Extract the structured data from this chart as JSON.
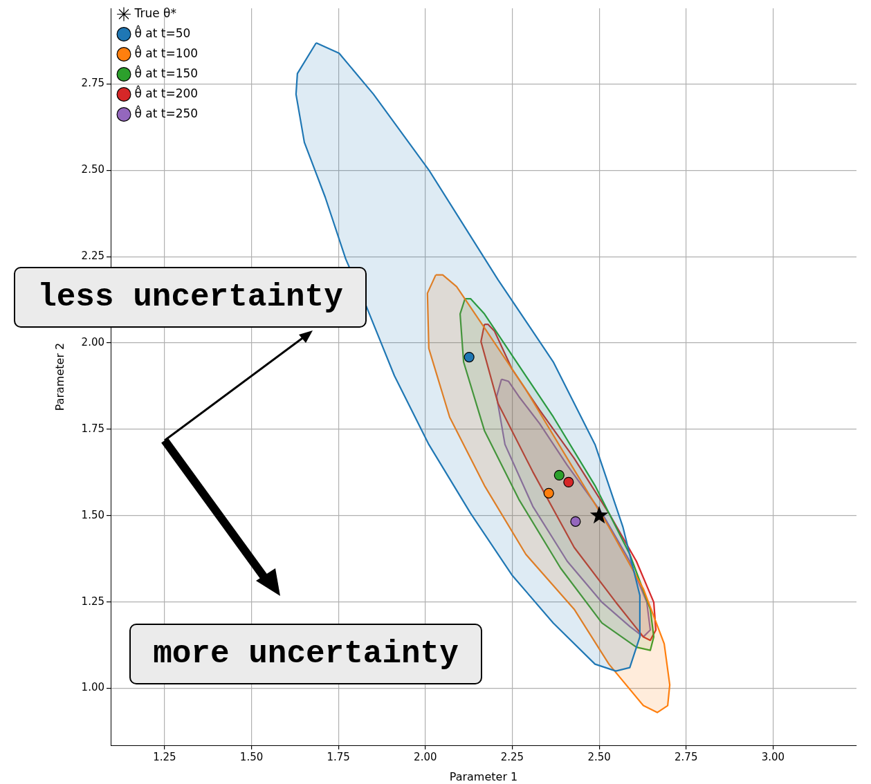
{
  "chart_data": {
    "type": "scatter",
    "xlabel": "Parameter 1",
    "ylabel": "Parameter 2",
    "xlim": [
      1.095,
      3.24
    ],
    "ylim": [
      0.835,
      2.969
    ],
    "xticks": [
      1.25,
      {
        "value": 1.5,
        "label": "1.50"
      },
      1.75,
      {
        "value": 2,
        "label": "2.00"
      },
      2.25,
      {
        "value": 2.5,
        "label": "2.50"
      },
      2.75,
      {
        "value": 3,
        "label": "3.00"
      }
    ],
    "yticks": [
      {
        "value": 1,
        "label": "1.00"
      },
      1.25,
      {
        "value": 1.5,
        "label": "1.50"
      },
      1.75,
      {
        "value": 2,
        "label": "2.00"
      },
      2.25,
      {
        "value": 2.5,
        "label": "2.50"
      },
      2.75
    ],
    "grid": true,
    "legend": "top left",
    "annotations": [
      "less uncertainty",
      "more uncertainty"
    ],
    "series": [
      {
        "type": "area",
        "marker": "none",
        "color": "#1f77b4",
        "x": [
          1.686,
          1.632,
          1.628,
          1.652,
          1.712,
          1.771,
          1.831,
          1.911,
          2.01,
          2.13,
          2.249,
          2.368,
          2.488,
          2.548,
          2.588,
          2.617,
          2.617,
          2.568,
          2.488,
          2.368,
          2.209,
          2.01,
          1.851,
          1.752,
          1.686
        ],
        "values": [
          2.869,
          2.78,
          2.72,
          2.581,
          2.422,
          2.243,
          2.104,
          1.905,
          1.706,
          1.507,
          1.328,
          1.189,
          1.07,
          1.05,
          1.06,
          1.149,
          1.269,
          1.468,
          1.706,
          1.945,
          2.183,
          2.501,
          2.72,
          2.839,
          2.869
        ]
      },
      {
        "type": "area",
        "marker": "none",
        "color": "#ff7f0e",
        "x": [
          2.03,
          2.006,
          2.01,
          2.07,
          2.17,
          2.289,
          2.428,
          2.528,
          2.627,
          2.667,
          2.697,
          2.703,
          2.687,
          2.627,
          2.528,
          2.408,
          2.289,
          2.17,
          2.09,
          2.05,
          2.03
        ],
        "values": [
          2.197,
          2.144,
          1.984,
          1.785,
          1.587,
          1.388,
          1.229,
          1.07,
          0.95,
          0.93,
          0.95,
          1.01,
          1.129,
          1.288,
          1.467,
          1.666,
          1.865,
          2.044,
          2.163,
          2.197,
          2.197
        ]
      },
      {
        "type": "area",
        "marker": "none",
        "color": "#2ca02c",
        "x": [
          2.114,
          2.1,
          2.11,
          2.17,
          2.269,
          2.389,
          2.508,
          2.607,
          2.647,
          2.657,
          2.647,
          2.588,
          2.488,
          2.368,
          2.249,
          2.17,
          2.13,
          2.114
        ],
        "values": [
          2.128,
          2.084,
          1.945,
          1.746,
          1.547,
          1.348,
          1.189,
          1.119,
          1.11,
          1.149,
          1.229,
          1.388,
          1.587,
          1.786,
          1.965,
          2.084,
          2.128,
          2.128
        ]
      },
      {
        "type": "area",
        "marker": "none",
        "color": "#d62728",
        "x": [
          2.17,
          2.16,
          2.209,
          2.309,
          2.428,
          2.548,
          2.627,
          2.647,
          2.663,
          2.657,
          2.607,
          2.528,
          2.428,
          2.329,
          2.249,
          2.199,
          2.18,
          2.17
        ],
        "values": [
          2.054,
          2.004,
          1.825,
          1.627,
          1.408,
          1.249,
          1.149,
          1.139,
          1.169,
          1.249,
          1.368,
          1.507,
          1.666,
          1.805,
          1.925,
          2.034,
          2.054,
          2.054
        ]
      },
      {
        "type": "area",
        "marker": "none",
        "color": "#9467bd",
        "x": [
          2.219,
          2.205,
          2.229,
          2.309,
          2.408,
          2.508,
          2.588,
          2.627,
          2.647,
          2.637,
          2.588,
          2.508,
          2.408,
          2.329,
          2.269,
          2.239,
          2.219
        ],
        "values": [
          1.895,
          1.845,
          1.706,
          1.527,
          1.368,
          1.249,
          1.179,
          1.149,
          1.169,
          1.249,
          1.368,
          1.507,
          1.646,
          1.766,
          1.845,
          1.889,
          1.895
        ]
      },
      {
        "type": "scatter",
        "marker": "star",
        "name": "True θ*",
        "color": "#000000",
        "x": [
          2.5
        ],
        "values": [
          1.5
        ]
      },
      {
        "type": "scatter",
        "marker": "circle",
        "name": "θ̂ at t=50",
        "color": "#1f77b4",
        "x": [
          2.126
        ],
        "values": [
          1.959
        ]
      },
      {
        "type": "scatter",
        "marker": "circle",
        "name": "θ̂ at t=100",
        "color": "#ff7f0e",
        "x": [
          2.355
        ],
        "values": [
          1.565
        ]
      },
      {
        "type": "scatter",
        "marker": "circle",
        "name": "θ̂ at t=150",
        "color": "#2ca02c",
        "x": [
          2.385
        ],
        "values": [
          1.617
        ]
      },
      {
        "type": "scatter",
        "marker": "circle",
        "name": "θ̂ at t=200",
        "color": "#d62728",
        "x": [
          2.412
        ],
        "values": [
          1.597
        ]
      },
      {
        "type": "scatter",
        "marker": "circle",
        "name": "θ̂ at t=250",
        "color": "#9467bd",
        "x": [
          2.432
        ],
        "values": [
          1.483
        ]
      }
    ]
  }
}
